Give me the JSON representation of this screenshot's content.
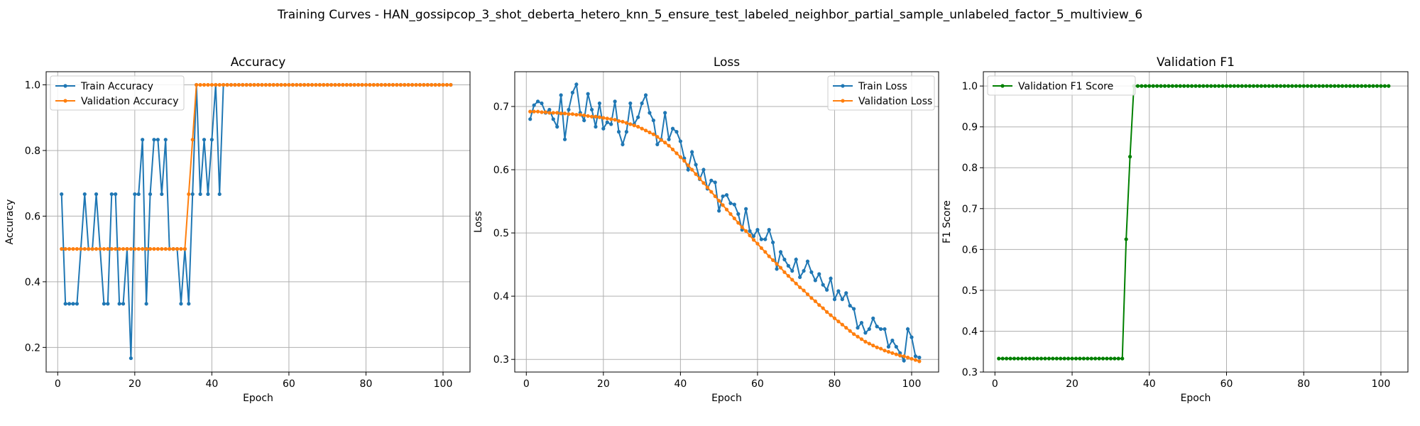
{
  "figure_title": "Training Curves - HAN_gossipcop_3_shot_deberta_hetero_knn_5_ensure_test_labeled_neighbor_partial_sample_unlabeled_factor_5_multiview_6",
  "colors": {
    "blue": "#1f77b4",
    "orange": "#ff7f0e",
    "green": "#008000"
  },
  "chart_data": [
    {
      "type": "line",
      "title": "Accuracy",
      "xlabel": "Epoch",
      "ylabel": "Accuracy",
      "xlim": [
        -3,
        107
      ],
      "ylim": [
        0.125,
        1.04
      ],
      "xticks": [
        0,
        20,
        40,
        60,
        80,
        100
      ],
      "yticks": [
        0.2,
        0.4,
        0.6,
        0.8,
        1.0
      ],
      "ytick_labels": [
        "0.2",
        "0.4",
        "0.6",
        "0.8",
        "1.0"
      ],
      "legend_position": "top-left",
      "grid": true,
      "series": [
        {
          "name": "Train Accuracy",
          "color": "#1f77b4",
          "x_start": 1,
          "values": [
            0.667,
            0.333,
            0.333,
            0.333,
            0.333,
            0.5,
            0.667,
            0.5,
            0.5,
            0.667,
            0.5,
            0.333,
            0.333,
            0.667,
            0.667,
            0.333,
            0.333,
            0.5,
            0.167,
            0.667,
            0.667,
            0.833,
            0.333,
            0.667,
            0.833,
            0.833,
            0.667,
            0.833,
            0.5,
            0.5,
            0.5,
            0.333,
            0.5,
            0.333,
            0.667,
            1.0,
            0.667,
            0.833,
            0.667,
            0.833,
            1.0,
            0.667,
            1.0,
            1.0,
            1.0,
            1.0,
            1.0,
            1.0,
            1.0,
            1.0,
            1.0,
            1.0,
            1.0,
            1.0,
            1.0,
            1.0,
            1.0,
            1.0,
            1.0,
            1.0,
            1.0,
            1.0,
            1.0,
            1.0,
            1.0,
            1.0,
            1.0,
            1.0,
            1.0,
            1.0,
            1.0,
            1.0,
            1.0,
            1.0,
            1.0,
            1.0,
            1.0,
            1.0,
            1.0,
            1.0,
            1.0,
            1.0,
            1.0,
            1.0,
            1.0,
            1.0,
            1.0,
            1.0,
            1.0,
            1.0,
            1.0,
            1.0,
            1.0,
            1.0,
            1.0,
            1.0,
            1.0,
            1.0,
            1.0,
            1.0,
            1.0,
            1.0
          ]
        },
        {
          "name": "Validation Accuracy",
          "color": "#ff7f0e",
          "x_start": 1,
          "values": [
            0.5,
            0.5,
            0.5,
            0.5,
            0.5,
            0.5,
            0.5,
            0.5,
            0.5,
            0.5,
            0.5,
            0.5,
            0.5,
            0.5,
            0.5,
            0.5,
            0.5,
            0.5,
            0.5,
            0.5,
            0.5,
            0.5,
            0.5,
            0.5,
            0.5,
            0.5,
            0.5,
            0.5,
            0.5,
            0.5,
            0.5,
            0.5,
            0.5,
            0.667,
            0.833,
            1.0,
            1.0,
            1.0,
            1.0,
            1.0,
            1.0,
            1.0,
            1.0,
            1.0,
            1.0,
            1.0,
            1.0,
            1.0,
            1.0,
            1.0,
            1.0,
            1.0,
            1.0,
            1.0,
            1.0,
            1.0,
            1.0,
            1.0,
            1.0,
            1.0,
            1.0,
            1.0,
            1.0,
            1.0,
            1.0,
            1.0,
            1.0,
            1.0,
            1.0,
            1.0,
            1.0,
            1.0,
            1.0,
            1.0,
            1.0,
            1.0,
            1.0,
            1.0,
            1.0,
            1.0,
            1.0,
            1.0,
            1.0,
            1.0,
            1.0,
            1.0,
            1.0,
            1.0,
            1.0,
            1.0,
            1.0,
            1.0,
            1.0,
            1.0,
            1.0,
            1.0,
            1.0,
            1.0,
            1.0,
            1.0,
            1.0,
            1.0
          ]
        }
      ]
    },
    {
      "type": "line",
      "title": "Loss",
      "xlabel": "Epoch",
      "ylabel": "Loss",
      "xlim": [
        -3,
        107
      ],
      "ylim": [
        0.28,
        0.755
      ],
      "xticks": [
        0,
        20,
        40,
        60,
        80,
        100
      ],
      "yticks": [
        0.3,
        0.4,
        0.5,
        0.6,
        0.7
      ],
      "ytick_labels": [
        "0.3",
        "0.4",
        "0.5",
        "0.6",
        "0.7"
      ],
      "legend_position": "top-right",
      "grid": true,
      "series": [
        {
          "name": "Train Loss",
          "color": "#1f77b4",
          "x_start": 1,
          "values": [
            0.68,
            0.702,
            0.708,
            0.705,
            0.69,
            0.695,
            0.68,
            0.668,
            0.718,
            0.648,
            0.695,
            0.722,
            0.735,
            0.69,
            0.678,
            0.72,
            0.695,
            0.668,
            0.705,
            0.665,
            0.675,
            0.672,
            0.708,
            0.66,
            0.64,
            0.66,
            0.705,
            0.672,
            0.683,
            0.705,
            0.718,
            0.69,
            0.678,
            0.64,
            0.648,
            0.69,
            0.648,
            0.665,
            0.66,
            0.645,
            0.618,
            0.6,
            0.628,
            0.608,
            0.585,
            0.6,
            0.57,
            0.583,
            0.58,
            0.535,
            0.558,
            0.56,
            0.547,
            0.545,
            0.53,
            0.505,
            0.538,
            0.503,
            0.495,
            0.505,
            0.49,
            0.49,
            0.505,
            0.485,
            0.443,
            0.47,
            0.458,
            0.448,
            0.44,
            0.458,
            0.43,
            0.44,
            0.455,
            0.438,
            0.425,
            0.435,
            0.418,
            0.41,
            0.428,
            0.395,
            0.408,
            0.395,
            0.405,
            0.385,
            0.38,
            0.35,
            0.358,
            0.342,
            0.348,
            0.365,
            0.352,
            0.348,
            0.348,
            0.32,
            0.33,
            0.32,
            0.31,
            0.298,
            0.348,
            0.335,
            0.305,
            0.303
          ]
        },
        {
          "name": "Validation Loss",
          "color": "#ff7f0e",
          "x_start": 1,
          "values": [
            0.692,
            0.692,
            0.692,
            0.691,
            0.691,
            0.69,
            0.69,
            0.69,
            0.689,
            0.689,
            0.688,
            0.688,
            0.687,
            0.687,
            0.686,
            0.685,
            0.684,
            0.684,
            0.683,
            0.682,
            0.681,
            0.68,
            0.679,
            0.677,
            0.676,
            0.674,
            0.672,
            0.67,
            0.668,
            0.665,
            0.662,
            0.659,
            0.656,
            0.652,
            0.647,
            0.643,
            0.638,
            0.632,
            0.626,
            0.62,
            0.614,
            0.607,
            0.6,
            0.593,
            0.586,
            0.579,
            0.572,
            0.565,
            0.558,
            0.551,
            0.544,
            0.537,
            0.53,
            0.523,
            0.516,
            0.509,
            0.503,
            0.496,
            0.489,
            0.483,
            0.476,
            0.47,
            0.463,
            0.457,
            0.451,
            0.445,
            0.438,
            0.432,
            0.426,
            0.42,
            0.414,
            0.409,
            0.403,
            0.397,
            0.392,
            0.386,
            0.381,
            0.375,
            0.37,
            0.365,
            0.36,
            0.355,
            0.35,
            0.345,
            0.34,
            0.336,
            0.332,
            0.328,
            0.325,
            0.322,
            0.319,
            0.317,
            0.314,
            0.312,
            0.31,
            0.308,
            0.306,
            0.305,
            0.303,
            0.301,
            0.299,
            0.297
          ]
        }
      ]
    },
    {
      "type": "line",
      "title": "Validation F1",
      "xlabel": "Epoch",
      "ylabel": "F1 Score",
      "xlim": [
        -3,
        107
      ],
      "ylim": [
        0.3,
        1.035
      ],
      "xticks": [
        0,
        20,
        40,
        60,
        80,
        100
      ],
      "yticks": [
        0.3,
        0.4,
        0.5,
        0.6,
        0.7,
        0.8,
        0.9,
        1.0
      ],
      "ytick_labels": [
        "0.3",
        "0.4",
        "0.5",
        "0.6",
        "0.7",
        "0.8",
        "0.9",
        "1.0"
      ],
      "legend_position": "top-left",
      "grid": true,
      "series": [
        {
          "name": "Validation F1 Score",
          "color": "#008000",
          "x_start": 1,
          "values": [
            0.333,
            0.333,
            0.333,
            0.333,
            0.333,
            0.333,
            0.333,
            0.333,
            0.333,
            0.333,
            0.333,
            0.333,
            0.333,
            0.333,
            0.333,
            0.333,
            0.333,
            0.333,
            0.333,
            0.333,
            0.333,
            0.333,
            0.333,
            0.333,
            0.333,
            0.333,
            0.333,
            0.333,
            0.333,
            0.333,
            0.333,
            0.333,
            0.333,
            0.625,
            0.827,
            1.0,
            1.0,
            1.0,
            1.0,
            1.0,
            1.0,
            1.0,
            1.0,
            1.0,
            1.0,
            1.0,
            1.0,
            1.0,
            1.0,
            1.0,
            1.0,
            1.0,
            1.0,
            1.0,
            1.0,
            1.0,
            1.0,
            1.0,
            1.0,
            1.0,
            1.0,
            1.0,
            1.0,
            1.0,
            1.0,
            1.0,
            1.0,
            1.0,
            1.0,
            1.0,
            1.0,
            1.0,
            1.0,
            1.0,
            1.0,
            1.0,
            1.0,
            1.0,
            1.0,
            1.0,
            1.0,
            1.0,
            1.0,
            1.0,
            1.0,
            1.0,
            1.0,
            1.0,
            1.0,
            1.0,
            1.0,
            1.0,
            1.0,
            1.0,
            1.0,
            1.0,
            1.0,
            1.0,
            1.0,
            1.0,
            1.0,
            1.0
          ]
        }
      ]
    }
  ]
}
